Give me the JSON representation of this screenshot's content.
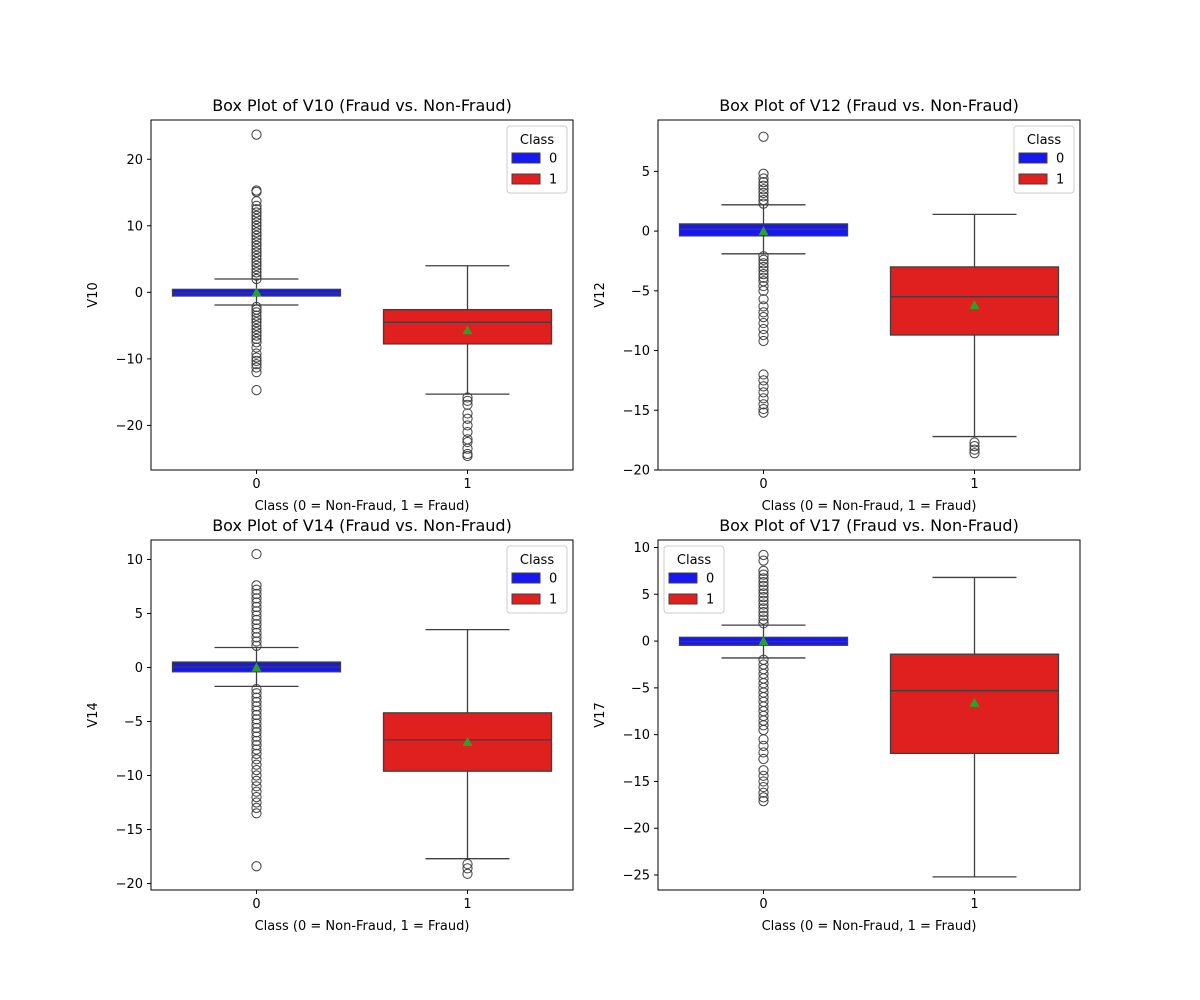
{
  "colors": {
    "class_0": "#1717f0",
    "class_1": "#e01f1f",
    "mean_marker": "#2ca02c",
    "line": "#3f3f3f"
  },
  "chart_data": [
    {
      "type": "box",
      "title": "Box Plot of V10 (Fraud vs. Non-Fraud)",
      "xlabel": "Class (0 = Non-Fraud, 1 = Fraud)",
      "ylabel": "V10",
      "categories": [
        "0",
        "1"
      ],
      "ylim": [
        -26.7,
        25.9
      ],
      "yticks": [
        20,
        10,
        0,
        -10,
        -20
      ],
      "ytick_labels": [
        "20",
        "10",
        "0",
        "−10",
        "−20"
      ],
      "legend": {
        "title": "Class",
        "entries": [
          "0",
          "1"
        ],
        "placement": "top-right"
      },
      "boxes": [
        {
          "category": "0",
          "q1": -0.55,
          "median": -0.1,
          "q3": 0.45,
          "whisker_low": -1.9,
          "whisker_high": 2.0,
          "mean": 0.0,
          "outliers_high": [
            2,
            2.5,
            3,
            3.5,
            4,
            4.5,
            5,
            5.5,
            6,
            6.5,
            7,
            7.5,
            8,
            8.5,
            9,
            9.5,
            10,
            10.5,
            11,
            11.5,
            12,
            12.5,
            13,
            13.7,
            15.1,
            15.3,
            23.7
          ],
          "outliers_low": [
            -2.2,
            -2.6,
            -3,
            -3.5,
            -4,
            -4.5,
            -5,
            -5.5,
            -6,
            -6.5,
            -7,
            -7.5,
            -8.3,
            -9.2,
            -9.8,
            -10.3,
            -10.8,
            -11.3,
            -12,
            -14.7
          ]
        },
        {
          "category": "1",
          "q1": -7.75,
          "median": -4.5,
          "q3": -2.6,
          "whisker_low": -15.3,
          "whisker_high": 4.0,
          "mean": -5.7,
          "outliers_high": [],
          "outliers_low": [
            -15.8,
            -16.3,
            -16.9,
            -18.2,
            -19,
            -20,
            -21,
            -22.1,
            -22.5,
            -23.5,
            -24.3,
            -24.6
          ]
        }
      ]
    },
    {
      "type": "box",
      "title": "Box Plot of V12 (Fraud vs. Non-Fraud)",
      "xlabel": "Class (0 = Non-Fraud, 1 = Fraud)",
      "ylabel": "V12",
      "categories": [
        "0",
        "1"
      ],
      "ylim": [
        -20,
        9.3
      ],
      "yticks": [
        5,
        0,
        -5,
        -10,
        -15,
        -20
      ],
      "ytick_labels": [
        "5",
        "0",
        "−5",
        "−10",
        "−15",
        "−20"
      ],
      "legend": {
        "title": "Class",
        "entries": [
          "0",
          "1"
        ],
        "placement": "top-right"
      },
      "boxes": [
        {
          "category": "0",
          "q1": -0.4,
          "median": 0.15,
          "q3": 0.6,
          "whisker_low": -1.9,
          "whisker_high": 2.2,
          "mean": 0.0,
          "outliers_high": [
            2.3,
            2.6,
            2.9,
            3.2,
            3.5,
            3.8,
            4.1,
            4.4,
            4.8,
            7.9
          ],
          "outliers_low": [
            -2.1,
            -2.4,
            -2.7,
            -3,
            -3.3,
            -3.6,
            -3.9,
            -4.2,
            -4.6,
            -5,
            -5.7,
            -6.3,
            -6.8,
            -7.2,
            -7.7,
            -8.2,
            -8.7,
            -9.2,
            -12,
            -12.5,
            -13,
            -13.5,
            -14,
            -14.5,
            -14.9,
            -15.2
          ]
        },
        {
          "category": "1",
          "q1": -8.7,
          "median": -5.5,
          "q3": -3.0,
          "whisker_low": -17.2,
          "whisker_high": 1.4,
          "mean": -6.2,
          "outliers_high": [],
          "outliers_low": [
            -17.7,
            -18,
            -18.3,
            -18.6
          ]
        }
      ]
    },
    {
      "type": "box",
      "title": "Box Plot of V14 (Fraud vs. Non-Fraud)",
      "xlabel": "Class (0 = Non-Fraud, 1 = Fraud)",
      "ylabel": "V14",
      "categories": [
        "0",
        "1"
      ],
      "ylim": [
        -20.6,
        11.8
      ],
      "yticks": [
        10,
        5,
        0,
        -5,
        -10,
        -15,
        -20
      ],
      "ytick_labels": [
        "10",
        "5",
        "0",
        "−5",
        "−10",
        "−15",
        "−20"
      ],
      "legend": {
        "title": "Class",
        "entries": [
          "0",
          "1"
        ],
        "placement": "top-right"
      },
      "boxes": [
        {
          "category": "0",
          "q1": -0.4,
          "median": 0.05,
          "q3": 0.5,
          "whisker_low": -1.75,
          "whisker_high": 1.85,
          "mean": 0.0,
          "outliers_high": [
            2,
            2.4,
            2.8,
            3.2,
            3.6,
            4,
            4.4,
            4.8,
            5.2,
            5.6,
            6,
            6.4,
            6.8,
            7.2,
            7.6,
            10.5
          ],
          "outliers_low": [
            -2,
            -2.4,
            -2.8,
            -3.2,
            -3.6,
            -4,
            -4.4,
            -4.8,
            -5.2,
            -5.6,
            -6,
            -6.4,
            -6.8,
            -7.2,
            -7.6,
            -8,
            -8.5,
            -9,
            -9.5,
            -10,
            -10.5,
            -11,
            -11.5,
            -12,
            -12.5,
            -13,
            -13.5,
            -18.4
          ]
        },
        {
          "category": "1",
          "q1": -9.6,
          "median": -6.7,
          "q3": -4.2,
          "whisker_low": -17.7,
          "whisker_high": 3.5,
          "mean": -6.9,
          "outliers_high": [],
          "outliers_low": [
            -18.2,
            -18.6,
            -19.1
          ]
        }
      ]
    },
    {
      "type": "box",
      "title": "Box Plot of V17 (Fraud vs. Non-Fraud)",
      "xlabel": "Class (0 = Non-Fraud, 1 = Fraud)",
      "ylabel": "V17",
      "categories": [
        "0",
        "1"
      ],
      "ylim": [
        -26.6,
        10.8
      ],
      "yticks": [
        10,
        5,
        0,
        -5,
        -10,
        -15,
        -20,
        -25
      ],
      "ytick_labels": [
        "10",
        "5",
        "0",
        "−5",
        "−10",
        "−15",
        "−20",
        "−25"
      ],
      "legend": {
        "title": "Class",
        "entries": [
          "0",
          "1"
        ],
        "placement": "top-left"
      },
      "boxes": [
        {
          "category": "0",
          "q1": -0.45,
          "median": -0.05,
          "q3": 0.4,
          "whisker_low": -1.8,
          "whisker_high": 1.7,
          "mean": 0.0,
          "outliers_high": [
            1.9,
            2.3,
            2.7,
            3.1,
            3.5,
            3.9,
            4.3,
            4.7,
            5.1,
            5.5,
            5.9,
            6.3,
            6.7,
            7.1,
            7.5,
            8.6,
            9.2
          ],
          "outliers_low": [
            -2,
            -2.5,
            -3,
            -3.5,
            -4,
            -4.5,
            -5,
            -5.5,
            -6,
            -6.5,
            -7,
            -7.5,
            -8,
            -8.5,
            -9,
            -9.5,
            -10.5,
            -11.2,
            -11.9,
            -12.6,
            -13.8,
            -14.4,
            -15,
            -15.6,
            -16.2,
            -16.7,
            -17.1
          ]
        },
        {
          "category": "1",
          "q1": -12.0,
          "median": -5.3,
          "q3": -1.4,
          "whisker_low": -25.2,
          "whisker_high": 6.8,
          "mean": -6.6,
          "outliers_high": [],
          "outliers_low": []
        }
      ]
    }
  ]
}
